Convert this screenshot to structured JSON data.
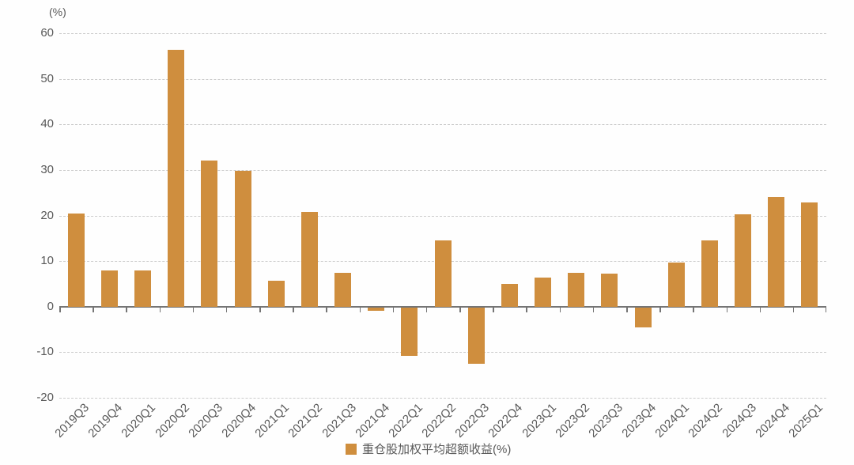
{
  "chart_data": {
    "type": "bar",
    "title": "",
    "unit_label": "(%)",
    "legend": "重仓股加权平均超额收益(%)",
    "legend_position": "bottom-center",
    "categories": [
      "2019Q3",
      "2019Q4",
      "2020Q1",
      "2020Q2",
      "2020Q3",
      "2020Q4",
      "2021Q1",
      "2021Q2",
      "2021Q3",
      "2021Q4",
      "2022Q1",
      "2022Q2",
      "2022Q3",
      "2022Q4",
      "2023Q1",
      "2023Q2",
      "2023Q3",
      "2023Q4",
      "2024Q1",
      "2024Q2",
      "2024Q3",
      "2024Q4",
      "2025Q1"
    ],
    "values": [
      20.4,
      8.0,
      7.9,
      56.4,
      32.0,
      29.8,
      5.7,
      20.8,
      7.4,
      -0.8,
      -10.7,
      14.5,
      -12.4,
      5.0,
      6.3,
      7.5,
      7.3,
      -4.4,
      9.6,
      14.6,
      20.3,
      24.0,
      22.9
    ],
    "xlabel": "",
    "ylabel": "",
    "ylim": [
      -20,
      60
    ],
    "yticks": [
      60,
      50,
      40,
      30,
      20,
      10,
      0,
      -10,
      -20
    ],
    "grid": "horizontal-dashed",
    "bar_color": "#CF8E3E",
    "axis_color": "#757575",
    "grid_color": "#CBCBCB",
    "text_color": "#595959"
  }
}
